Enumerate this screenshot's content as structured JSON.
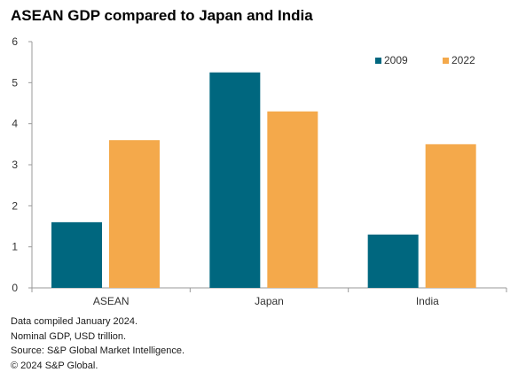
{
  "chart_data": {
    "type": "bar",
    "title": "ASEAN GDP compared to Japan and India",
    "categories": [
      "ASEAN",
      "Japan",
      "India"
    ],
    "series": [
      {
        "name": "2009",
        "values": [
          1.6,
          5.25,
          1.3
        ],
        "color": "#00677f"
      },
      {
        "name": "2022",
        "values": [
          3.6,
          4.3,
          3.5
        ],
        "color": "#f4a94b"
      }
    ],
    "ylim": [
      0,
      6
    ],
    "yticks": [
      0,
      1,
      2,
      3,
      4,
      5,
      6
    ],
    "xlabel": "",
    "ylabel": "",
    "grid": false,
    "legend_position": "top-right"
  },
  "footnotes": [
    "Data compiled January 2024.",
    "Nominal GDP, USD trillion.",
    "Source: S&P Global Market Intelligence.",
    "© 2024 S&P Global."
  ]
}
